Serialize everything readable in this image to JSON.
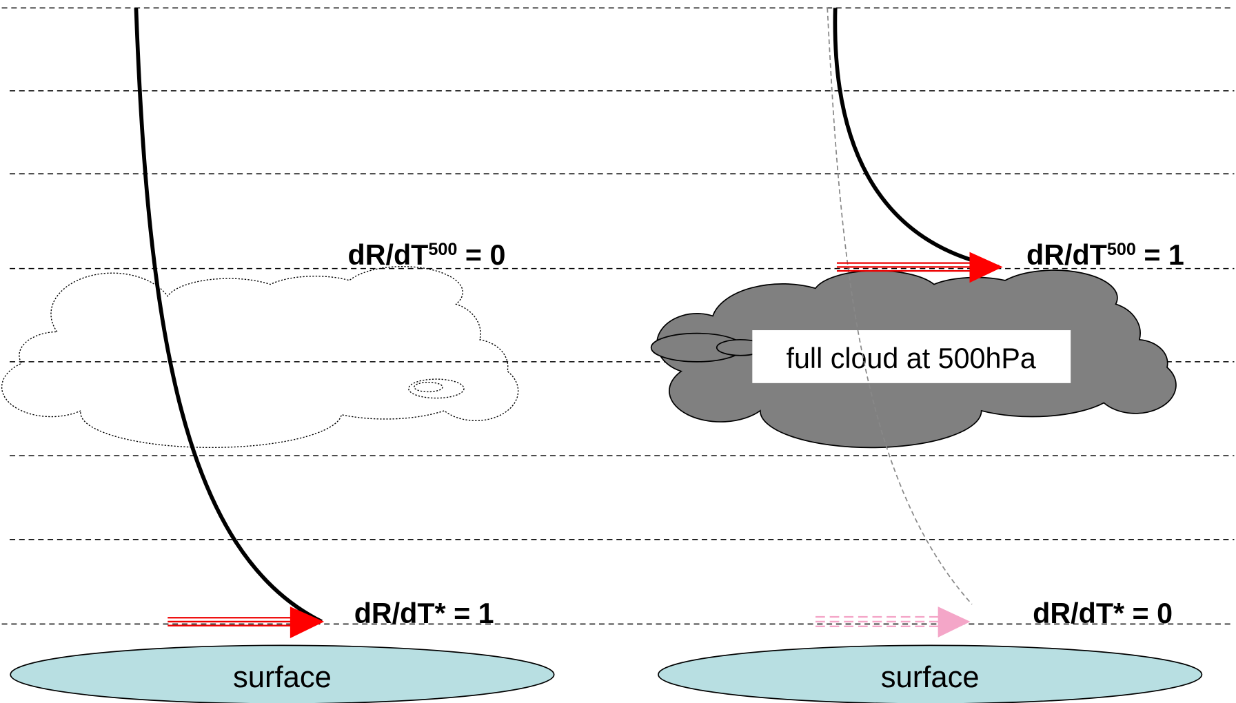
{
  "left": {
    "top_label": {
      "base": "dR/dT",
      "sup": "500",
      "rest": " = 0"
    },
    "surface_label": "dR/dT* = 1",
    "surface": "surface"
  },
  "right": {
    "top_label": {
      "base": "dR/dT",
      "sup": "500",
      "rest": " = 1"
    },
    "surface_label": "dR/dT* = 0",
    "surface": "surface",
    "cloud_label": "full cloud at 500hPa"
  }
}
